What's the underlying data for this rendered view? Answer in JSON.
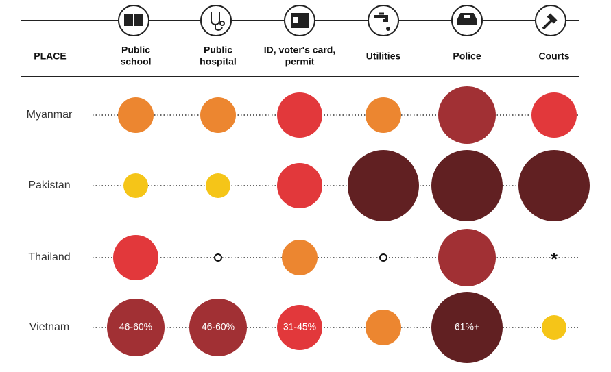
{
  "header": {
    "place": "PLACE",
    "columns": [
      [
        "Public",
        "school"
      ],
      [
        "Public",
        "hospital"
      ],
      [
        "ID, voter's card,",
        "permit"
      ],
      [
        "Utilities"
      ],
      [
        "Police"
      ],
      [
        "Courts"
      ]
    ]
  },
  "rows": [
    {
      "name": "Myanmar",
      "cells": [
        {
          "color": "#ec8630"
        },
        {
          "color": "#ec8630"
        },
        {
          "color": "#e2383b"
        },
        {
          "color": "#ec8630"
        },
        {
          "color": "#a13034"
        },
        {
          "color": "#e2383b"
        }
      ]
    },
    {
      "name": "Pakistan",
      "cells": [
        {
          "color": "#f5c518"
        },
        {
          "color": "#f5c518"
        },
        {
          "color": "#e2383b"
        },
        {
          "color": "#612022"
        },
        {
          "color": "#612022"
        },
        {
          "color": "#612022"
        }
      ]
    },
    {
      "name": "Thailand",
      "cells": [
        {
          "color": "#e2383b"
        },
        {
          "marker": "hollow"
        },
        {
          "color": "#ec8630"
        },
        {
          "marker": "hollow"
        },
        {
          "color": "#a13034"
        },
        {
          "text": "*"
        }
      ]
    },
    {
      "name": "Vietnam",
      "cells": [
        {
          "color": "#a13034",
          "label": "46-60%"
        },
        {
          "color": "#a13034",
          "label": "46-60%"
        },
        {
          "color": "#e2383b",
          "label": "31-45%"
        },
        {
          "color": "#ec8630"
        },
        {
          "color": "#612022",
          "label": "61%+"
        },
        {
          "color": "#f5c518"
        }
      ]
    }
  ]
}
